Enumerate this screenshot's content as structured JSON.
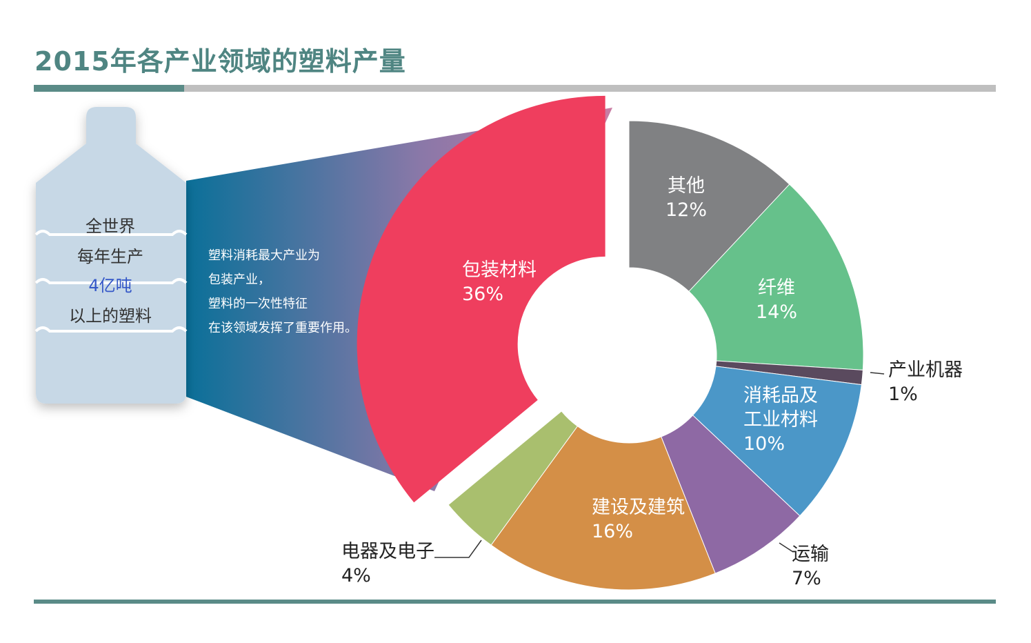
{
  "title": "2015年各产业领域的塑料产量",
  "bottle": {
    "line1": "全世界",
    "line2": "每年生产",
    "line3": "4亿吨",
    "line4": "以上的塑料"
  },
  "description": [
    "塑料消耗最大产业为",
    "包装产业，",
    "塑料的一次性特征",
    "在该领域发挥了重要作用。"
  ],
  "colors": {
    "title": "#4f8582",
    "accent": "#5a8b87",
    "highlight": "#3558c8"
  },
  "chart_data": {
    "type": "pie",
    "title": "2015年各产业领域的塑料产量",
    "unit": "%",
    "slices": [
      {
        "label": "包装材料",
        "value": 36,
        "color": "#ef3e5e",
        "exploded": true
      },
      {
        "label": "其他",
        "value": 12,
        "color": "#808183"
      },
      {
        "label": "纤维",
        "value": 14,
        "color": "#66c18b"
      },
      {
        "label": "产业机器",
        "value": 1,
        "color": "#5a4a5e"
      },
      {
        "label": "消耗品及工业材料",
        "value": 10,
        "color": "#4b97c8"
      },
      {
        "label": "运输",
        "value": 7,
        "color": "#8e69a4"
      },
      {
        "label": "建设及建筑",
        "value": 16,
        "color": "#d48f47"
      },
      {
        "label": "电器及电子",
        "value": 4,
        "color": "#a9bf6e"
      }
    ],
    "legend": "none",
    "label_position": "inside-and-outside"
  }
}
